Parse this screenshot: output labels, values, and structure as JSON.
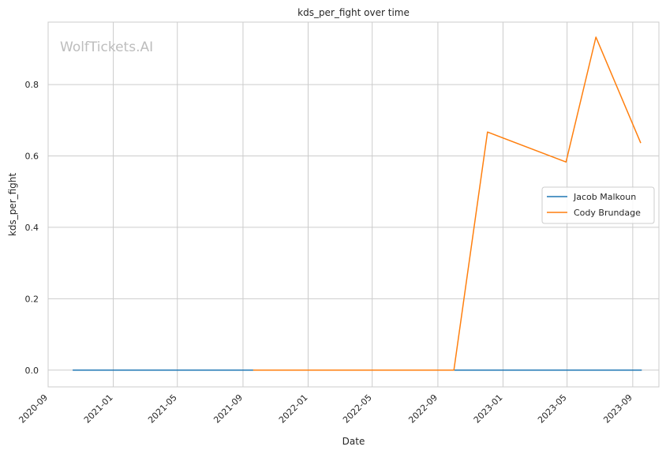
{
  "chart_data": {
    "type": "line",
    "title": "kds_per_fight over time",
    "xlabel": "Date",
    "ylabel": "kds_per_fight",
    "watermark": "WolfTickets.AI",
    "grid": true,
    "legend_position": "center-right",
    "x_ticks": [
      "2020-09",
      "2021-01",
      "2021-05",
      "2021-09",
      "2022-01",
      "2022-05",
      "2022-09",
      "2023-01",
      "2023-05",
      "2023-09"
    ],
    "y_ticks": [
      "0.0",
      "0.2",
      "0.4",
      "0.6",
      "0.8"
    ],
    "xlim": [
      "2020-09-01",
      "2023-10-20"
    ],
    "ylim": [
      -0.047,
      0.975
    ],
    "series": [
      {
        "name": "Jacob Malkoun",
        "color": "#1f77b4",
        "points": [
          {
            "x": "2020-10-17",
            "y": 0.0
          },
          {
            "x": "2023-09-18",
            "y": 0.0
          }
        ]
      },
      {
        "name": "Cody Brundage",
        "color": "#ff7f0e",
        "points": [
          {
            "x": "2021-09-20",
            "y": 0.0
          },
          {
            "x": "2022-10-01",
            "y": 0.0
          },
          {
            "x": "2022-12-03",
            "y": 0.667
          },
          {
            "x": "2023-04-29",
            "y": 0.583
          },
          {
            "x": "2023-06-24",
            "y": 0.933
          },
          {
            "x": "2023-09-16",
            "y": 0.636
          }
        ]
      }
    ]
  }
}
